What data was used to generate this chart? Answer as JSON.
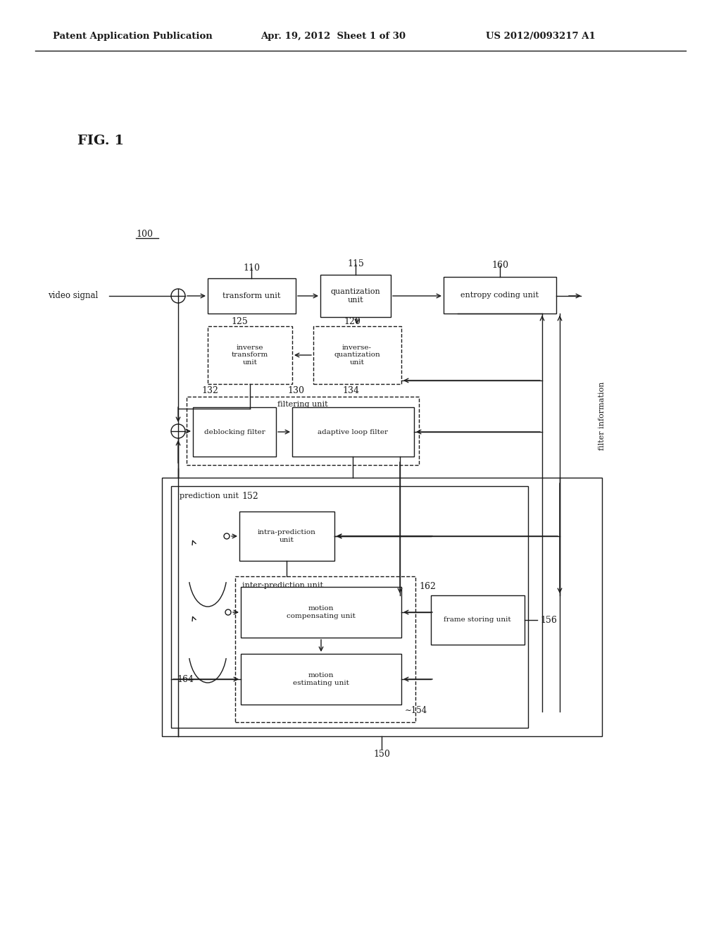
{
  "title_line1": "Patent Application Publication",
  "title_line2": "Apr. 19, 2012  Sheet 1 of 30",
  "title_line3": "US 2012/0093217 A1",
  "fig_label": "FIG. 1",
  "background_color": "#ffffff",
  "line_color": "#1a1a1a",
  "box_edge_color": "#1a1a1a",
  "text_color": "#1a1a1a",
  "box_transform": "transform unit",
  "box_quantization": "quantization\nunit",
  "box_entropy": "entropy coding unit",
  "box_inverse_transform": "inverse\ntransform\nunit",
  "box_inverse_quantization": "inverse-\nquantization\nunit",
  "box_filtering": "filtering unit",
  "box_deblocking": "deblocking filter",
  "box_adaptive": "adaptive loop filter",
  "box_prediction": "prediction unit",
  "box_intra": "intra-prediction\nunit",
  "box_inter": "inter-prediction unit",
  "box_motion_comp": "motion\ncompensating unit",
  "box_motion_est": "motion\nestimating unit",
  "box_frame": "frame storing unit",
  "text_video_signal": "video signal",
  "text_filter_info": "filter information",
  "label_100": "100",
  "label_110": "110",
  "label_115": "115",
  "label_160": "160",
  "label_125": "125",
  "label_120": "120",
  "label_130": "130",
  "label_132": "132",
  "label_134": "134",
  "label_150": "150",
  "label_152": "152",
  "label_154": "∼154",
  "label_156": "156",
  "label_162": "162",
  "label_164": "164"
}
